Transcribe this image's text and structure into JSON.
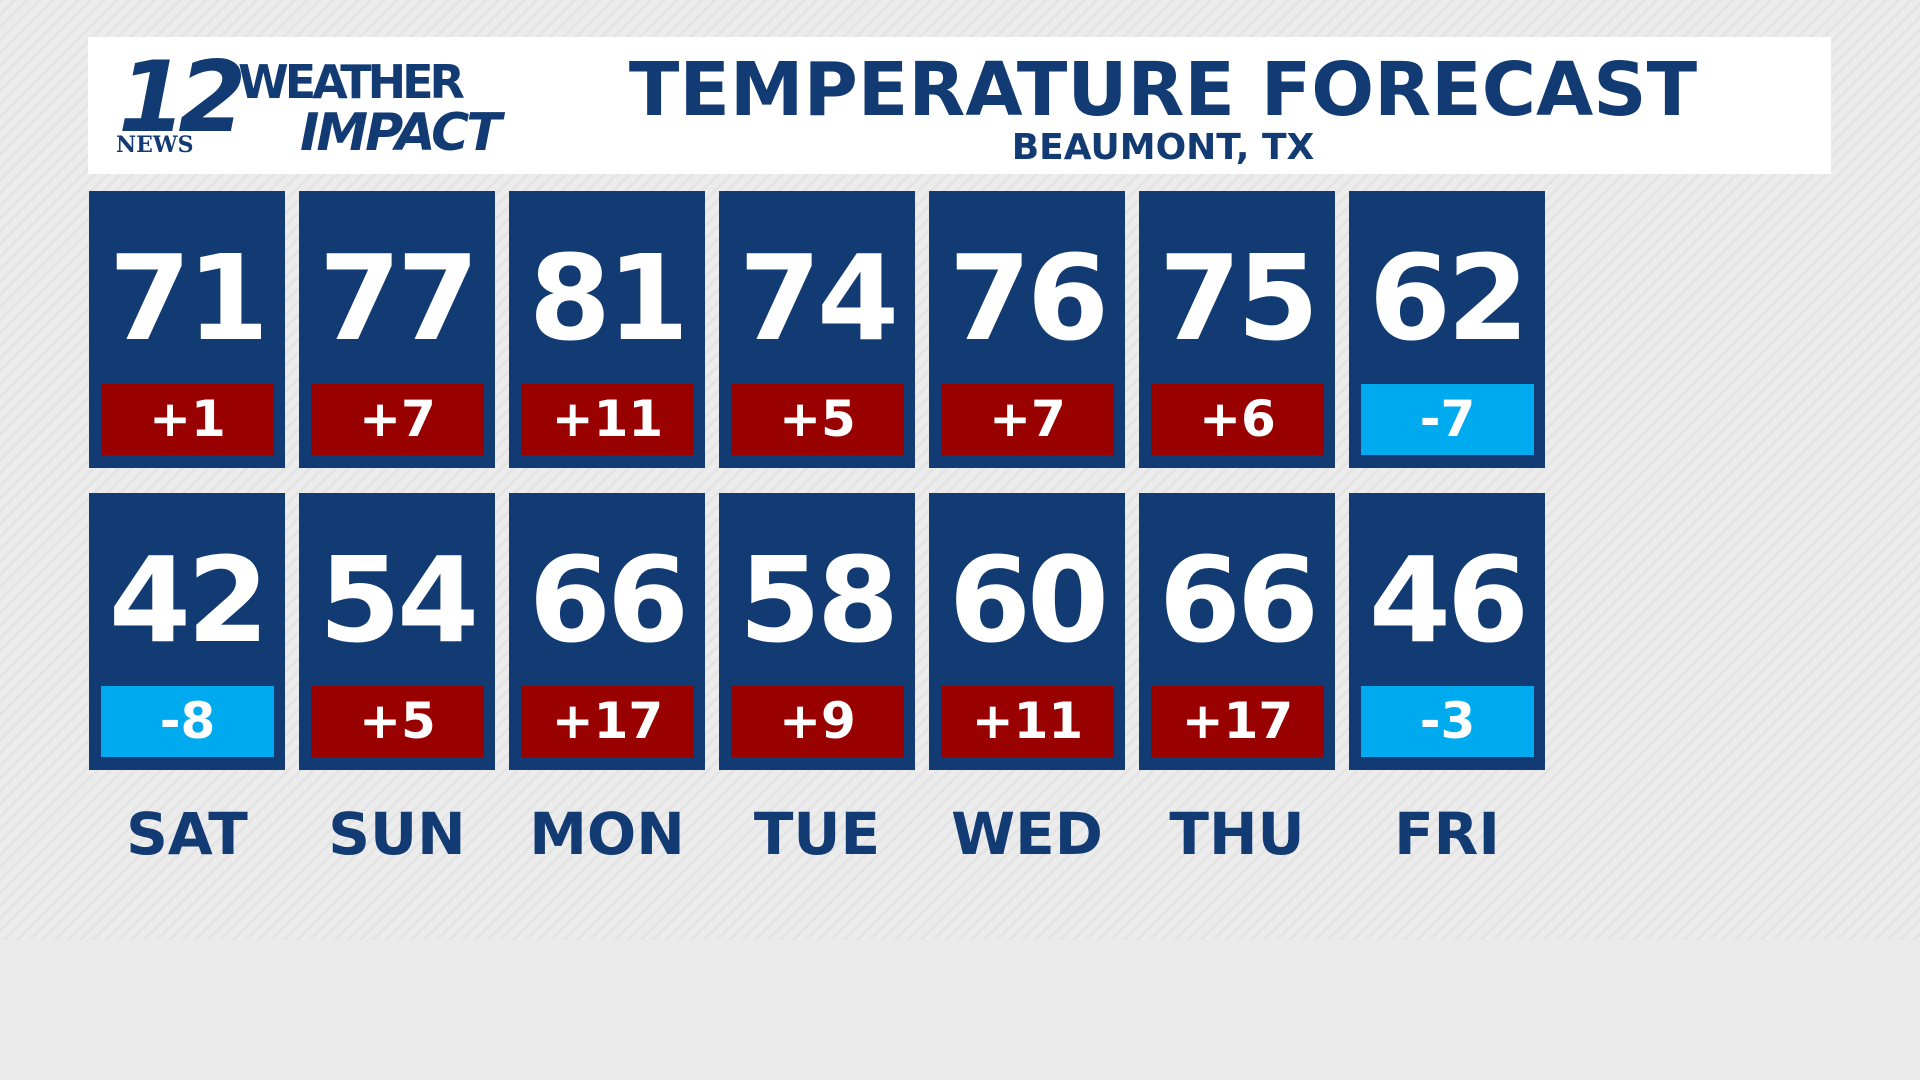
{
  "header": {
    "logo": {
      "number": "12",
      "station": "NEWS",
      "line1": "WEATHER",
      "line2": "IMPACT"
    },
    "title": "TEMPERATURE FORECAST",
    "subtitle": "BEAUMONT, TX"
  },
  "colors": {
    "tile": "#123a73",
    "warm": "#990000",
    "cool": "#00aaee",
    "day": "#123a73"
  },
  "days": [
    {
      "day": "SAT",
      "high": 71,
      "high_change": "+1",
      "low": 42,
      "low_change": "-8"
    },
    {
      "day": "SUN",
      "high": 77,
      "high_change": "+7",
      "low": 54,
      "low_change": "+5"
    },
    {
      "day": "MON",
      "high": 81,
      "high_change": "+11",
      "low": 66,
      "low_change": "+17"
    },
    {
      "day": "TUE",
      "high": 74,
      "high_change": "+5",
      "low": 58,
      "low_change": "+9"
    },
    {
      "day": "WED",
      "high": 76,
      "high_change": "+7",
      "low": 60,
      "low_change": "+11"
    },
    {
      "day": "THU",
      "high": 75,
      "high_change": "+6",
      "low": 66,
      "low_change": "+17"
    },
    {
      "day": "FRI",
      "high": 62,
      "high_change": "-7",
      "low": 46,
      "low_change": "-3"
    }
  ]
}
